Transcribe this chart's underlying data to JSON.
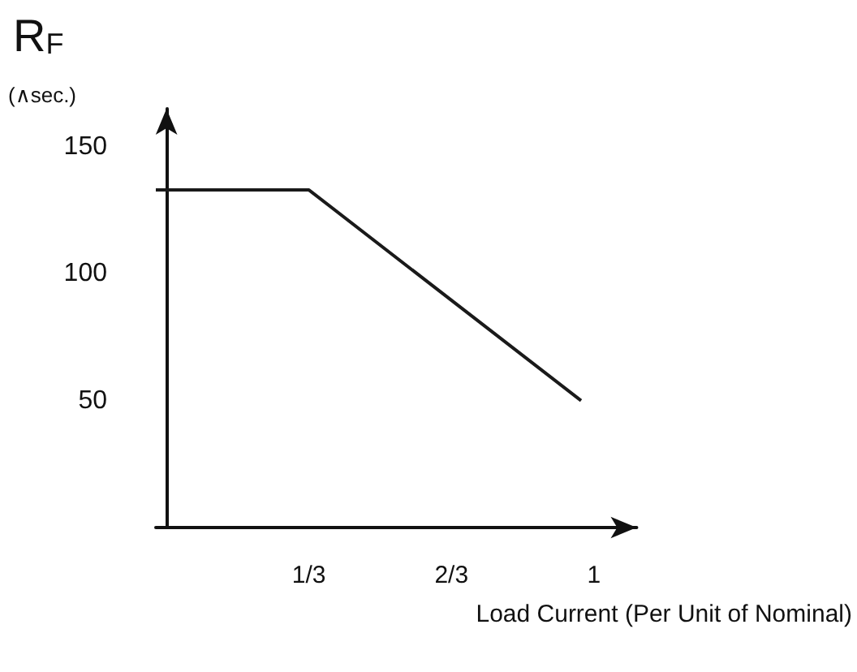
{
  "chart_data": {
    "type": "line",
    "xlabel": "Load Current (Per Unit of Nominal)",
    "ylabel": "R$_{F}$",
    "annotations": [
      "(∧sec.)"
    ],
    "x": [
      -0.025,
      0.3333,
      0.97
    ],
    "values": [
      133,
      133,
      50
    ],
    "color": "#1a1a1a",
    "xlim": [
      -0.025,
      1.1
    ],
    "xticks": [
      {
        "value": 0.3333,
        "label": "1/3"
      },
      {
        "value": 0.6667,
        "label": "2/3"
      },
      1
    ],
    "ylim": [
      0,
      165
    ],
    "yticks": [
      50,
      100,
      150
    ],
    "marker": "none",
    "line_style": "solid"
  }
}
